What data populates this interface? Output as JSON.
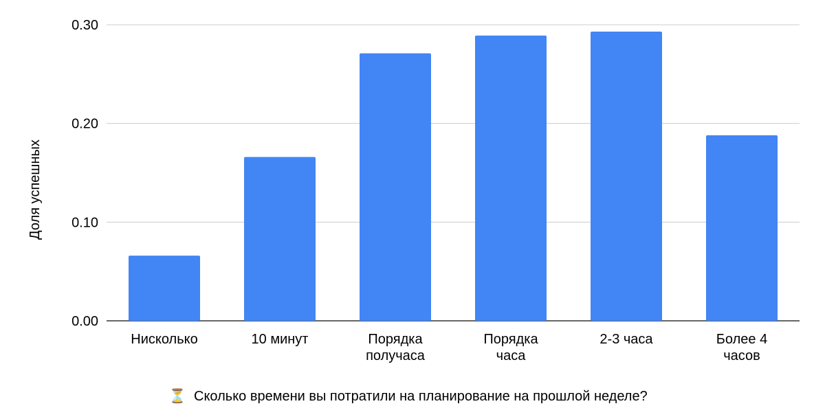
{
  "chart_data": {
    "type": "bar",
    "categories": [
      [
        "Нисколько"
      ],
      [
        "10 минут"
      ],
      [
        "Порядка",
        "получаса"
      ],
      [
        "Порядка",
        "часа"
      ],
      [
        "2-3 часа"
      ],
      [
        "Более 4",
        "часов"
      ]
    ],
    "values": [
      0.066,
      0.166,
      0.271,
      0.289,
      0.293,
      0.188
    ],
    "ylabel": "Доля успешных",
    "xlabel": "Сколько времени вы потратили на планирование на прошлой неделе?",
    "xlabel_icon": "⏳",
    "ylim": [
      0,
      0.3
    ],
    "yticks": [
      "0.00",
      "0.10",
      "0.20",
      "0.30"
    ],
    "ytick_values": [
      0,
      0.1,
      0.2,
      0.3
    ],
    "grid": true,
    "bar_color": "#4285f4",
    "grid_color": "#cccccc"
  }
}
